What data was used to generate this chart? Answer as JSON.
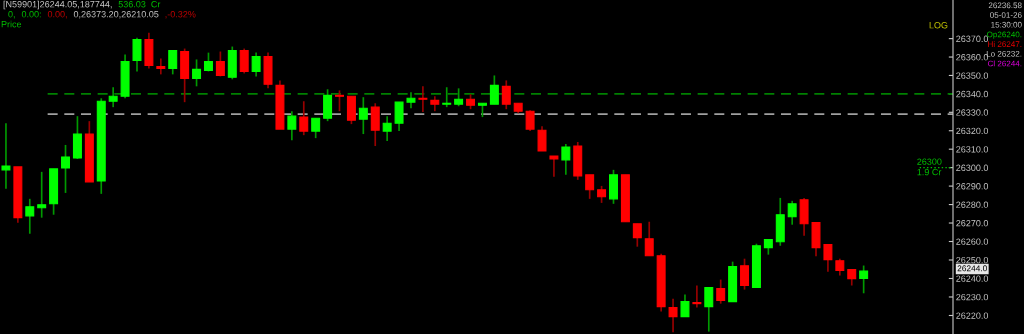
{
  "chart_data": {
    "type": "candlestick",
    "log": true,
    "categories": [
      null,
      null,
      null,
      null,
      null,
      null,
      null,
      null,
      null,
      null,
      null,
      null,
      null,
      null,
      null,
      null,
      null,
      null,
      null,
      null,
      null,
      null,
      null,
      null,
      null,
      null,
      null,
      null,
      null,
      null,
      null,
      null,
      null,
      null,
      null,
      null,
      null,
      null,
      null,
      null,
      null,
      null,
      null,
      null,
      null,
      null,
      null,
      null,
      null,
      null,
      null,
      null,
      null,
      null,
      null,
      null,
      null,
      null,
      null,
      null,
      null,
      null,
      null,
      null,
      null,
      null,
      null,
      null,
      null,
      null,
      null,
      null,
      null,
      null,
      null,
      null,
      null,
      null,
      null,
      null
    ],
    "ohlc": [
      [
        26298.8,
        26324.1,
        26288.5,
        26300.9
      ],
      [
        26300.4,
        26300.4,
        26270.2,
        26272.9
      ],
      [
        26273.9,
        26283.1,
        26264.2,
        26278.8
      ],
      [
        26278.3,
        26297.7,
        26272.9,
        26279.9
      ],
      [
        26280.4,
        26299.3,
        26274.5,
        26299.3
      ],
      [
        26299.8,
        26312.3,
        26286.3,
        26305.8
      ],
      [
        26305.2,
        26327.9,
        26304.7,
        26318.2
      ],
      [
        26318.2,
        26325.2,
        26292.3,
        26292.3
      ],
      [
        26292.8,
        26337.6,
        26285.8,
        26336.0
      ],
      [
        26336.0,
        26343.6,
        26332.8,
        26338.7
      ],
      [
        26338.7,
        26361.4,
        26337.6,
        26357.6
      ],
      [
        26358.1,
        26370.5,
        26352.2,
        26369.5
      ],
      [
        26369.5,
        26373.2,
        26353.8,
        26355.4
      ],
      [
        26354.9,
        26359.2,
        26350.6,
        26353.8
      ],
      [
        26353.8,
        26363.5,
        26350.6,
        26363.5
      ],
      [
        26363.0,
        26364.6,
        26335.5,
        26348.4
      ],
      [
        26348.4,
        26358.7,
        26344.1,
        26353.3
      ],
      [
        26352.7,
        26362.4,
        26352.2,
        26357.6
      ],
      [
        26357.6,
        26363.0,
        26349.5,
        26350.0
      ],
      [
        26349.0,
        26365.7,
        26347.9,
        26363.5
      ],
      [
        26363.5,
        26364.6,
        26351.1,
        26352.2
      ],
      [
        26352.2,
        26362.4,
        26349.5,
        26360.3
      ],
      [
        26360.3,
        26362.4,
        26343.0,
        26345.2
      ],
      [
        26344.6,
        26347.3,
        26320.9,
        26320.9
      ],
      [
        26320.9,
        26330.6,
        26314.9,
        26327.9
      ],
      [
        26327.4,
        26336.0,
        26317.6,
        26319.8
      ],
      [
        26319.8,
        26326.8,
        26316.0,
        26326.8
      ],
      [
        26326.8,
        26342.5,
        26325.2,
        26339.2
      ],
      [
        26339.2,
        26341.9,
        26330.6,
        26338.7
      ],
      [
        26338.7,
        26338.7,
        26323.6,
        26325.7
      ],
      [
        26326.3,
        26338.2,
        26318.2,
        26332.2
      ],
      [
        26332.8,
        26334.9,
        26311.7,
        26320.3
      ],
      [
        26319.8,
        26327.9,
        26314.4,
        26324.1
      ],
      [
        26324.1,
        26335.5,
        26319.8,
        26335.5
      ],
      [
        26335.5,
        26340.9,
        26332.2,
        26337.6
      ],
      [
        26337.6,
        26344.1,
        26330.1,
        26337.1
      ],
      [
        26336.5,
        26338.7,
        26330.6,
        26334.4
      ],
      [
        26334.4,
        26343.6,
        26332.8,
        26334.9
      ],
      [
        26334.4,
        26343.0,
        26333.3,
        26337.1
      ],
      [
        26337.1,
        26339.8,
        26331.7,
        26333.8
      ],
      [
        26333.8,
        26334.9,
        26327.4,
        26334.9
      ],
      [
        26334.4,
        26350.0,
        26334.4,
        26344.6
      ],
      [
        26344.1,
        26347.3,
        26331.7,
        26334.4
      ],
      [
        26334.9,
        26334.9,
        26329.5,
        26330.6
      ],
      [
        26330.6,
        26331.1,
        26319.8,
        26320.9
      ],
      [
        26320.3,
        26322.5,
        26309.0,
        26309.0
      ],
      [
        26306.3,
        26306.3,
        26295.0,
        26304.7
      ],
      [
        26304.2,
        26312.8,
        26296.1,
        26311.2
      ],
      [
        26311.7,
        26313.9,
        26293.4,
        26295.5
      ],
      [
        26296.1,
        26296.1,
        26283.1,
        26288.0
      ],
      [
        26288.0,
        26290.1,
        26280.9,
        26284.2
      ],
      [
        26283.1,
        26298.8,
        26280.4,
        26296.1
      ],
      [
        26296.1,
        26296.1,
        26270.7,
        26270.7
      ],
      [
        26269.6,
        26269.6,
        26257.2,
        26262.1
      ],
      [
        26261.5,
        26270.7,
        26252.3,
        26252.3
      ],
      [
        26252.3,
        26253.4,
        26222.1,
        26224.8
      ],
      [
        26224.3,
        26229.1,
        26211.0,
        26219.4
      ],
      [
        26219.4,
        26231.3,
        26219.4,
        26227.5
      ],
      [
        26227.0,
        26236.2,
        26224.3,
        26226.4
      ],
      [
        26224.8,
        26235.1,
        26211.3,
        26235.1
      ],
      [
        26234.5,
        26239.4,
        26226.4,
        26228.1
      ],
      [
        26227.5,
        26249.1,
        26227.5,
        26246.4
      ],
      [
        26246.9,
        26250.7,
        26234.0,
        26236.2
      ],
      [
        26235.1,
        26258.8,
        26235.1,
        26257.7
      ],
      [
        26256.7,
        26261.0,
        26252.9,
        26261.0
      ],
      [
        26259.9,
        26283.6,
        26257.7,
        26274.5
      ],
      [
        26273.4,
        26282.0,
        26269.1,
        26280.4
      ],
      [
        26282.6,
        26283.6,
        26263.1,
        26269.6
      ],
      [
        26270.2,
        26270.2,
        26252.0,
        26256.7
      ],
      [
        26258.3,
        26258.3,
        26243.7,
        26250.2
      ],
      [
        26249.6,
        26250.7,
        26241.6,
        26244.3
      ],
      [
        26244.8,
        26244.8,
        26236.2,
        26239.9
      ],
      [
        26240,
        26247,
        26232,
        26244
      ],
      null,
      null,
      null,
      null,
      null,
      null,
      null
    ],
    "colors": [
      "#00ff00",
      "#ff0000",
      "#00ff00",
      "#00ff00",
      "#00ff00",
      "#00ff00",
      "#00ff00",
      "#ff0000",
      "#00ff00",
      "#00ff00",
      "#00ff00",
      "#00ff00",
      "#ff0000",
      "#ff0000",
      "#00ff00",
      "#ff0000",
      "#00ff00",
      "#00ff00",
      "#ff0000",
      "#00ff00",
      "#ff0000",
      "#00ff00",
      "#ff0000",
      "#ff0000",
      "#00ff00",
      "#ff0000",
      "#00ff00",
      "#00ff00",
      "#ff0000",
      "#ff0000",
      "#00ff00",
      "#ff0000",
      "#00ff00",
      "#00ff00",
      "#00ff00",
      "#ff0000",
      "#ff0000",
      "#00ff00",
      "#00ff00",
      "#ff0000",
      "#00ff00",
      "#00ff00",
      "#ff0000",
      "#ff0000",
      "#ff0000",
      "#ff0000",
      "#ff0000",
      "#00ff00",
      "#ff0000",
      "#ff0000",
      "#ff0000",
      "#00ff00",
      "#ff0000",
      "#ff0000",
      "#ff0000",
      "#ff0000",
      "#ff0000",
      "#00ff00",
      "#ff0000",
      "#00ff00",
      "#ff0000",
      "#00ff00",
      "#ff0000",
      "#00ff00",
      "#00ff00",
      "#00ff00",
      "#00ff00",
      "#ff0000",
      "#ff0000",
      "#ff0000",
      "#ff0000",
      "#ff0000",
      "#00ff00",
      null,
      null,
      null,
      null,
      null,
      null,
      null
    ],
    "ylim": [
      26210,
      26391
    ],
    "yticks": [
      {
        "value": 26220,
        "label": "26220.0"
      },
      {
        "value": 26230,
        "label": "26230.0"
      },
      {
        "value": 26240,
        "label": "26240.0"
      },
      {
        "value": 26250,
        "label": "26250.0"
      },
      {
        "value": 26260,
        "label": "26260.0"
      },
      {
        "value": 26270,
        "label": "26270.0"
      },
      {
        "value": 26280,
        "label": "26280.0"
      },
      {
        "value": 26290,
        "label": "26290.0"
      },
      {
        "value": 26300,
        "label": "26300.0"
      },
      {
        "value": 26310,
        "label": "26310.0"
      },
      {
        "value": 26320,
        "label": "26320.0"
      },
      {
        "value": 26330,
        "label": "26330.0"
      },
      {
        "value": 26340,
        "label": "26340.0"
      },
      {
        "value": 26350,
        "label": "26350.0"
      },
      {
        "value": 26360,
        "label": "26360.0"
      },
      {
        "value": 26370,
        "label": "26370.0"
      }
    ],
    "tick_labels": "y",
    "grid": false,
    "ref_lines": [
      {
        "axis": "y",
        "value": 26340,
        "color": "#008000",
        "line_style": "dashed"
      },
      {
        "axis": "y",
        "value": 26329,
        "color": "#a0a0a0",
        "line_style": "dashed"
      },
      {
        "axis": "y",
        "value": 26300,
        "label": "26300\n1.9 Cr",
        "color": "#00c000",
        "line_style": "dotted"
      }
    ],
    "annotations": [
      "[N59901]26244.05,187744,",
      "536.03  Cr",
      "0,",
      "0.00:",
      "0.00,",
      "0,26373.20,26210.05",
      ",-0.32%",
      "Price",
      "LOG",
      "26236.58",
      "05-01-26",
      "15:30:00",
      "Op26240.",
      "Hi 26247.",
      "Lo 26232.",
      "Cl 26244.",
      "26244.0"
    ]
  }
}
